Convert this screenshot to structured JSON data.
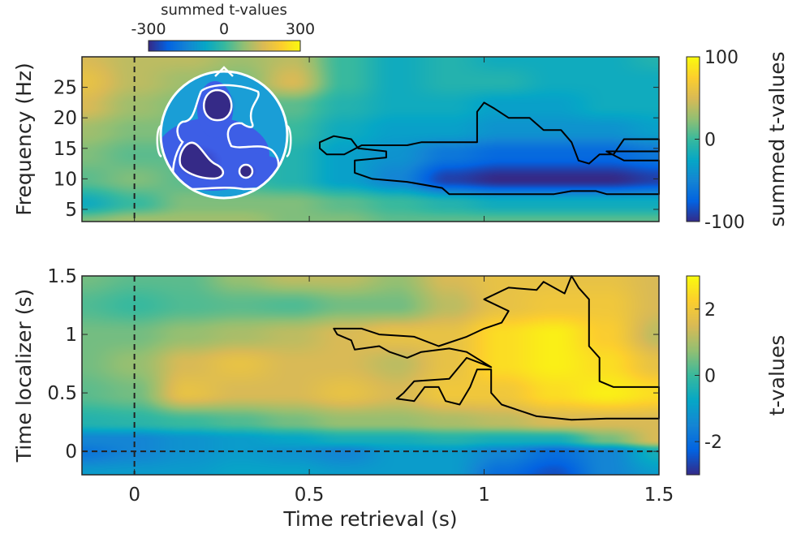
{
  "colormap": [
    "#352a87",
    "#0363e1",
    "#1485d4",
    "#06a7c6",
    "#38b99e",
    "#92bf73",
    "#d9ba56",
    "#fcce2e",
    "#f9fb0e"
  ],
  "chart_data": [
    {
      "type": "heatmap",
      "name": "time-frequency",
      "xlabel": "",
      "ylabel": "Frequency (Hz)",
      "xlim": [
        -0.15,
        1.5
      ],
      "ylim": [
        3,
        30
      ],
      "xticks": [
        0,
        0.5,
        1,
        1.5
      ],
      "yticks": [
        "5",
        "10",
        "15",
        "20",
        "25"
      ],
      "x": [
        -0.15,
        0,
        0.15,
        0.3,
        0.45,
        0.6,
        0.75,
        0.9,
        1.05,
        1.2,
        1.35,
        1.5
      ],
      "y": [
        30,
        26,
        22,
        18,
        14,
        10,
        6,
        3
      ],
      "values": [
        [
          50,
          40,
          40,
          30,
          40,
          0,
          -20,
          -10,
          -20,
          -20,
          -20,
          -10
        ],
        [
          60,
          40,
          30,
          20,
          50,
          0,
          -20,
          -10,
          -10,
          -20,
          -20,
          -20
        ],
        [
          50,
          30,
          20,
          10,
          10,
          -10,
          -20,
          -20,
          -30,
          -30,
          -20,
          -20
        ],
        [
          30,
          20,
          20,
          10,
          0,
          -20,
          -30,
          -30,
          -40,
          -40,
          -40,
          -30
        ],
        [
          20,
          10,
          10,
          0,
          -10,
          -30,
          -40,
          -60,
          -70,
          -70,
          -70,
          -60
        ],
        [
          10,
          20,
          10,
          0,
          -10,
          -30,
          -50,
          -90,
          -100,
          -100,
          -100,
          -90
        ],
        [
          -20,
          0,
          20,
          20,
          20,
          10,
          0,
          -10,
          -20,
          -20,
          -20,
          -20
        ],
        [
          20,
          30,
          30,
          30,
          20,
          20,
          10,
          10,
          10,
          10,
          10,
          10
        ]
      ],
      "clim": [
        -100,
        100
      ],
      "colorbar": {
        "label": "summed t-values",
        "ticks": [
          "100",
          "0",
          "-100"
        ],
        "tick_values": [
          100,
          0,
          -100
        ]
      },
      "vline_x": 0,
      "cluster_contour": [
        [
          0.53,
          16
        ],
        [
          0.57,
          17
        ],
        [
          0.62,
          16.5
        ],
        [
          0.64,
          15
        ],
        [
          0.72,
          14.5
        ],
        [
          0.72,
          13.5
        ],
        [
          0.63,
          13
        ],
        [
          0.63,
          11
        ],
        [
          0.68,
          10
        ],
        [
          0.78,
          9.5
        ],
        [
          0.88,
          8.5
        ],
        [
          0.9,
          7.5
        ],
        [
          1.2,
          7.5
        ],
        [
          1.25,
          8
        ],
        [
          1.32,
          8
        ],
        [
          1.35,
          7.5
        ],
        [
          1.5,
          7.5
        ],
        [
          1.5,
          13
        ],
        [
          1.4,
          13
        ],
        [
          1.35,
          14.5
        ],
        [
          1.5,
          14.5
        ],
        [
          1.5,
          16.5
        ],
        [
          1.4,
          16.5
        ],
        [
          1.37,
          14
        ],
        [
          1.33,
          14
        ],
        [
          1.3,
          12.5
        ],
        [
          1.27,
          13
        ],
        [
          1.25,
          16
        ],
        [
          1.22,
          18
        ],
        [
          1.17,
          18
        ],
        [
          1.13,
          20
        ],
        [
          1.07,
          20
        ],
        [
          1.03,
          21.5
        ],
        [
          1.0,
          22.5
        ],
        [
          0.98,
          21
        ],
        [
          0.98,
          16
        ],
        [
          0.82,
          16
        ],
        [
          0.78,
          15.5
        ],
        [
          0.65,
          15.5
        ],
        [
          0.6,
          14
        ],
        [
          0.55,
          14
        ],
        [
          0.53,
          15
        ]
      ],
      "inset": {
        "type": "topoplot",
        "colorbar_label": "summed t-values",
        "colorbar_ticks": [
          "-300",
          "0",
          "300"
        ],
        "clim": [
          -300,
          300
        ]
      }
    },
    {
      "type": "heatmap",
      "name": "time-time",
      "xlabel": "Time retrieval (s)",
      "ylabel": "Time localizer (s)",
      "xlim": [
        -0.15,
        1.5
      ],
      "ylim": [
        -0.2,
        1.5
      ],
      "xticks": [
        "0",
        "0.5",
        "1",
        "1.5"
      ],
      "yticks": [
        "0",
        "0.5",
        "1",
        "1.5"
      ],
      "x": [
        -0.15,
        0,
        0.15,
        0.3,
        0.45,
        0.6,
        0.75,
        0.9,
        1.05,
        1.2,
        1.35,
        1.5
      ],
      "y": [
        1.5,
        1.25,
        1.0,
        0.75,
        0.5,
        0.25,
        0.1,
        0,
        -0.2
      ],
      "values": [
        [
          0.5,
          0.3,
          0.3,
          0.8,
          1.2,
          1.2,
          0.8,
          1.5,
          1.8,
          1.8,
          1.8,
          1.5
        ],
        [
          0.2,
          0,
          0.2,
          0.3,
          0.2,
          0.5,
          0.5,
          1.2,
          1.8,
          2,
          2,
          1.5
        ],
        [
          0.5,
          0.5,
          0.8,
          1.0,
          1.2,
          1.5,
          1.8,
          1.8,
          2.5,
          2.8,
          2.2,
          1.2
        ],
        [
          0.5,
          0.8,
          1.5,
          1.8,
          1.5,
          1.5,
          1.2,
          1.8,
          2.5,
          2.8,
          2.5,
          1.8
        ],
        [
          0.3,
          0.5,
          1.8,
          1.5,
          1.5,
          1.8,
          1.5,
          2,
          2,
          2.5,
          2.8,
          2.5
        ],
        [
          -0.3,
          -0.2,
          0,
          0.2,
          0.5,
          0.8,
          0.8,
          1.0,
          1.2,
          1.5,
          1.5,
          1.5
        ],
        [
          -1.5,
          -1.5,
          -1.2,
          -1,
          -0.8,
          -0.5,
          -0.5,
          -0.3,
          -0.5,
          -0.5,
          0.5,
          1.5
        ],
        [
          -1.8,
          -1.5,
          -1.2,
          -1,
          -1.2,
          -1.5,
          -1,
          -1,
          -1.5,
          -2,
          -1.5,
          -0.5
        ],
        [
          -1,
          -1,
          -1,
          -0.8,
          -0.8,
          -1,
          -1,
          -1,
          -2,
          -2.5,
          -1.5,
          -1
        ]
      ],
      "clim": [
        -3,
        3
      ],
      "colorbar": {
        "label": "t-values",
        "ticks": [
          "2",
          "0",
          "-2"
        ],
        "tick_values": [
          2,
          0,
          -2
        ]
      },
      "vline_x": 0,
      "hline_y": 0,
      "cluster_contour": [
        [
          0.57,
          1.05
        ],
        [
          0.65,
          1.05
        ],
        [
          0.7,
          1.0
        ],
        [
          0.8,
          0.98
        ],
        [
          0.87,
          0.9
        ],
        [
          0.95,
          0.98
        ],
        [
          1.0,
          1.05
        ],
        [
          1.05,
          1.1
        ],
        [
          1.07,
          1.2
        ],
        [
          1.0,
          1.3
        ],
        [
          1.07,
          1.4
        ],
        [
          1.15,
          1.38
        ],
        [
          1.17,
          1.45
        ],
        [
          1.23,
          1.35
        ],
        [
          1.25,
          1.5
        ],
        [
          1.27,
          1.4
        ],
        [
          1.3,
          1.3
        ],
        [
          1.3,
          0.9
        ],
        [
          1.33,
          0.8
        ],
        [
          1.33,
          0.6
        ],
        [
          1.37,
          0.55
        ],
        [
          1.5,
          0.55
        ],
        [
          1.5,
          0.28
        ],
        [
          1.35,
          0.28
        ],
        [
          1.25,
          0.27
        ],
        [
          1.15,
          0.3
        ],
        [
          1.05,
          0.4
        ],
        [
          1.02,
          0.5
        ],
        [
          1.02,
          0.7
        ],
        [
          0.98,
          0.7
        ],
        [
          0.96,
          0.55
        ],
        [
          0.93,
          0.4
        ],
        [
          0.89,
          0.43
        ],
        [
          0.87,
          0.55
        ],
        [
          0.83,
          0.55
        ],
        [
          0.8,
          0.43
        ],
        [
          0.75,
          0.45
        ],
        [
          0.77,
          0.5
        ],
        [
          0.8,
          0.6
        ],
        [
          0.9,
          0.62
        ],
        [
          0.95,
          0.8
        ],
        [
          1.02,
          0.72
        ],
        [
          0.95,
          0.85
        ],
        [
          0.9,
          0.88
        ],
        [
          0.82,
          0.85
        ],
        [
          0.78,
          0.8
        ],
        [
          0.73,
          0.85
        ],
        [
          0.7,
          0.9
        ],
        [
          0.63,
          0.87
        ],
        [
          0.62,
          0.95
        ],
        [
          0.58,
          1.0
        ]
      ]
    }
  ]
}
